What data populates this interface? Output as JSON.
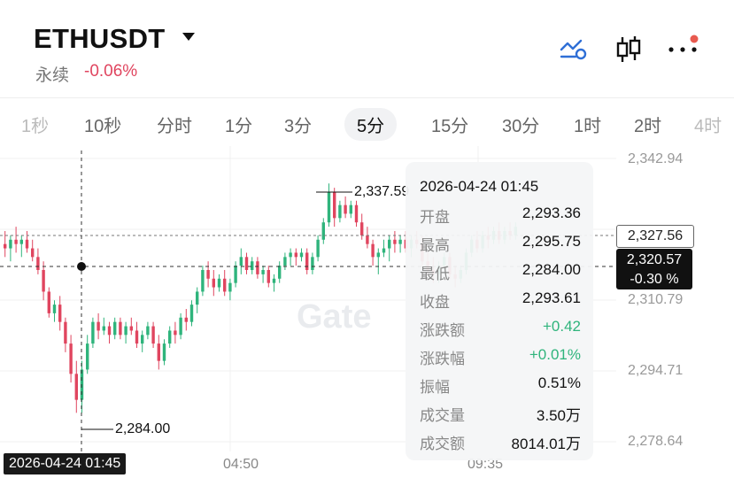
{
  "header": {
    "symbol": "ETHUSDT",
    "contract_type": "永续",
    "change_pct": "-0.06%",
    "change_color": "#e0455f",
    "icons": [
      "indicator-icon",
      "candlestick-icon",
      "more-icon"
    ]
  },
  "intervals": [
    {
      "label": "1秒",
      "active": false
    },
    {
      "label": "10秒",
      "active": false
    },
    {
      "label": "分时",
      "active": false
    },
    {
      "label": "1分",
      "active": false
    },
    {
      "label": "3分",
      "active": false
    },
    {
      "label": "5分",
      "active": true
    },
    {
      "label": "15分",
      "active": false
    },
    {
      "label": "30分",
      "active": false
    },
    {
      "label": "1时",
      "active": false
    },
    {
      "label": "2时",
      "active": false
    },
    {
      "label": "4时",
      "active": false
    }
  ],
  "price_axis": [
    "2,342.94",
    "2,310.79",
    "2,294.71",
    "2,278.64"
  ],
  "time_axis": [
    "04:50",
    "09:35"
  ],
  "annotations": {
    "high": "2,337.59",
    "low": "2,284.00"
  },
  "crosshair_time": "2026-04-24 01:45",
  "current_price": "2,327.56",
  "crosshair_price": "2,320.57",
  "crosshair_change": "-0.30 %",
  "tooltip": {
    "date": "2026-04-24 01:45",
    "rows": [
      {
        "label": "开盘",
        "value": "2,293.36",
        "color": "#111111"
      },
      {
        "label": "最高",
        "value": "2,295.75",
        "color": "#111111"
      },
      {
        "label": "最低",
        "value": "2,284.00",
        "color": "#111111"
      },
      {
        "label": "收盘",
        "value": "2,293.61",
        "color": "#111111"
      },
      {
        "label": "涨跌额",
        "value": "+0.42",
        "color": "#2fb47c"
      },
      {
        "label": "涨跌幅",
        "value": "+0.01%",
        "color": "#2fb47c"
      },
      {
        "label": "振幅",
        "value": "0.51%",
        "color": "#111111"
      },
      {
        "label": "成交量",
        "value": "3.50万",
        "color": "#111111"
      },
      {
        "label": "成交额",
        "value": "8014.01万",
        "color": "#111111"
      }
    ]
  },
  "watermark": "Gate",
  "colors": {
    "up": "#2fb47c",
    "down": "#e0455f"
  },
  "chart_data": {
    "type": "candlestick",
    "ylim": [
      2276.5,
      2344.0
    ],
    "grid": true,
    "candles": [
      [
        2323,
        2326,
        2320,
        2322
      ],
      [
        2322,
        2325,
        2319,
        2324
      ],
      [
        2324,
        2327,
        2321,
        2323
      ],
      [
        2323,
        2325,
        2320,
        2324
      ],
      [
        2324,
        2326,
        2321,
        2322
      ],
      [
        2322,
        2324,
        2319,
        2320
      ],
      [
        2320,
        2322,
        2316,
        2317
      ],
      [
        2317,
        2319,
        2310,
        2312
      ],
      [
        2312,
        2313,
        2306,
        2307
      ],
      [
        2307,
        2310,
        2305,
        2309
      ],
      [
        2309,
        2311,
        2303,
        2305
      ],
      [
        2305,
        2306,
        2298,
        2300
      ],
      [
        2300,
        2302,
        2291,
        2293
      ],
      [
        2293,
        2296,
        2284,
        2287
      ],
      [
        2287,
        2296,
        2284,
        2294
      ],
      [
        2294,
        2302,
        2293,
        2300
      ],
      [
        2300,
        2306,
        2299,
        2305
      ],
      [
        2305,
        2307,
        2301,
        2303
      ],
      [
        2303,
        2306,
        2302,
        2304
      ],
      [
        2304,
        2305,
        2300,
        2302
      ],
      [
        2302,
        2306,
        2301,
        2305
      ],
      [
        2305,
        2306,
        2301,
        2302
      ],
      [
        2302,
        2305,
        2300,
        2304
      ],
      [
        2304,
        2306,
        2302,
        2303
      ],
      [
        2303,
        2305,
        2299,
        2300
      ],
      [
        2300,
        2303,
        2298,
        2302
      ],
      [
        2302,
        2305,
        2301,
        2304
      ],
      [
        2304,
        2305,
        2299,
        2300
      ],
      [
        2300,
        2302,
        2294,
        2296
      ],
      [
        2296,
        2301,
        2295,
        2300
      ],
      [
        2300,
        2304,
        2299,
        2303
      ],
      [
        2303,
        2305,
        2300,
        2302
      ],
      [
        2302,
        2307,
        2301,
        2306
      ],
      [
        2306,
        2308,
        2303,
        2305
      ],
      [
        2305,
        2310,
        2304,
        2309
      ],
      [
        2309,
        2313,
        2307,
        2312
      ],
      [
        2312,
        2318,
        2311,
        2317
      ],
      [
        2317,
        2319,
        2313,
        2315
      ],
      [
        2315,
        2317,
        2311,
        2313
      ],
      [
        2313,
        2316,
        2312,
        2315
      ],
      [
        2315,
        2317,
        2311,
        2312
      ],
      [
        2312,
        2315,
        2310,
        2314
      ],
      [
        2314,
        2319,
        2313,
        2318
      ],
      [
        2318,
        2322,
        2316,
        2320
      ],
      [
        2320,
        2321,
        2316,
        2317
      ],
      [
        2317,
        2320,
        2316,
        2319
      ],
      [
        2319,
        2320,
        2315,
        2316
      ],
      [
        2316,
        2318,
        2314,
        2317
      ],
      [
        2317,
        2318,
        2313,
        2314
      ],
      [
        2314,
        2316,
        2312,
        2315
      ],
      [
        2315,
        2319,
        2314,
        2318
      ],
      [
        2318,
        2321,
        2317,
        2320
      ],
      [
        2320,
        2322,
        2318,
        2321
      ],
      [
        2321,
        2322,
        2318,
        2320
      ],
      [
        2320,
        2322,
        2319,
        2321
      ],
      [
        2321,
        2322,
        2316,
        2317
      ],
      [
        2317,
        2321,
        2316,
        2320
      ],
      [
        2320,
        2325,
        2319,
        2324
      ],
      [
        2324,
        2329,
        2323,
        2328
      ],
      [
        2328,
        2337,
        2327,
        2335
      ],
      [
        2335,
        2336,
        2327,
        2329
      ],
      [
        2329,
        2333,
        2328,
        2332
      ],
      [
        2332,
        2334,
        2329,
        2330
      ],
      [
        2330,
        2333,
        2329,
        2332
      ],
      [
        2332,
        2333,
        2327,
        2328
      ],
      [
        2328,
        2330,
        2324,
        2325
      ],
      [
        2325,
        2327,
        2322,
        2323
      ],
      [
        2323,
        2324,
        2318,
        2320
      ],
      [
        2320,
        2322,
        2316,
        2321
      ],
      [
        2321,
        2324,
        2320,
        2322
      ],
      [
        2322,
        2325,
        2319,
        2324
      ],
      [
        2324,
        2326,
        2321,
        2323
      ],
      [
        2323,
        2325,
        2321,
        2324
      ],
      [
        2324,
        2326,
        2321,
        2322
      ],
      [
        2322,
        2325,
        2320,
        2324
      ],
      [
        2324,
        2326,
        2322,
        2323
      ],
      [
        2323,
        2325,
        2318,
        2319
      ],
      [
        2319,
        2321,
        2316,
        2317
      ],
      [
        2317,
        2320,
        2314,
        2316
      ],
      [
        2316,
        2319,
        2314,
        2318
      ],
      [
        2318,
        2321,
        2317,
        2320
      ],
      [
        2320,
        2321,
        2315,
        2316
      ],
      [
        2316,
        2318,
        2313,
        2315
      ],
      [
        2315,
        2318,
        2314,
        2317
      ],
      [
        2317,
        2322,
        2316,
        2321
      ],
      [
        2321,
        2325,
        2320,
        2324
      ],
      [
        2324,
        2326,
        2321,
        2322
      ],
      [
        2322,
        2326,
        2321,
        2325
      ],
      [
        2325,
        2327,
        2322,
        2324
      ],
      [
        2324,
        2327,
        2323,
        2326
      ],
      [
        2326,
        2328,
        2323,
        2324
      ],
      [
        2324,
        2327,
        2323,
        2326
      ],
      [
        2326,
        2328,
        2324,
        2325
      ],
      [
        2325,
        2328,
        2324,
        2327
      ]
    ]
  }
}
